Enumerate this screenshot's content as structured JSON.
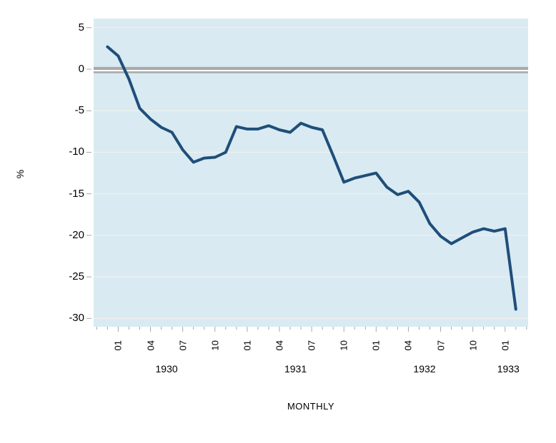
{
  "chart_data": {
    "type": "line",
    "title": "",
    "xlabel": "MONTHLY",
    "ylabel": "%",
    "x": [
      "1929M12",
      "1930M01",
      "1930M02",
      "1930M03",
      "1930M04",
      "1930M05",
      "1930M06",
      "1930M07",
      "1930M08",
      "1930M09",
      "1930M10",
      "1930M11",
      "1930M12",
      "1931M01",
      "1931M02",
      "1931M03",
      "1931M04",
      "1931M05",
      "1931M06",
      "1931M07",
      "1931M08",
      "1931M09",
      "1931M10",
      "1931M11",
      "1931M12",
      "1932M01",
      "1932M02",
      "1932M03",
      "1932M04",
      "1932M05",
      "1932M06",
      "1932M07",
      "1932M08",
      "1932M09",
      "1932M10",
      "1932M11",
      "1932M12",
      "1933M01",
      "1933M02"
    ],
    "values": [
      2.7,
      1.6,
      -1.2,
      -4.7,
      -6.0,
      -7.0,
      -7.6,
      -9.7,
      -11.2,
      -10.7,
      -10.6,
      -10.0,
      -6.9,
      -7.2,
      -7.2,
      -6.8,
      -7.3,
      -7.6,
      -6.5,
      -7.0,
      -7.3,
      -10.4,
      -13.6,
      -13.1,
      -12.8,
      -12.5,
      -14.2,
      -15.1,
      -14.7,
      -16.0,
      -18.6,
      -20.1,
      -21.0,
      -20.3,
      -19.6,
      -19.2,
      -19.5,
      -19.2,
      -28.9
    ],
    "ylim": [
      -31,
      6.1
    ],
    "yticks": [
      5,
      0,
      -5,
      -10,
      -15,
      -20,
      -25,
      -30
    ],
    "xtick_major_labels": [
      "01",
      "04",
      "07",
      "10",
      "01",
      "04",
      "07",
      "10",
      "01",
      "04",
      "07",
      "10",
      "01"
    ],
    "year_labels": [
      {
        "label": "1930",
        "month_center": 5.5
      },
      {
        "label": "1931",
        "month_center": 17.5
      },
      {
        "label": "1932",
        "month_center": 29.5
      },
      {
        "label": "1933",
        "month_center": 37.3
      }
    ],
    "zero_line": true,
    "grid": true,
    "legend": "none",
    "colors": {
      "line": "#1f4e79",
      "plot_bg": "#d9eaf2",
      "gridline": "#f2f0ec",
      "zero_line": "#a9a9a9",
      "tick": "#a6a6a6",
      "text": "#000000",
      "figure_bg": "#ffffff"
    }
  }
}
